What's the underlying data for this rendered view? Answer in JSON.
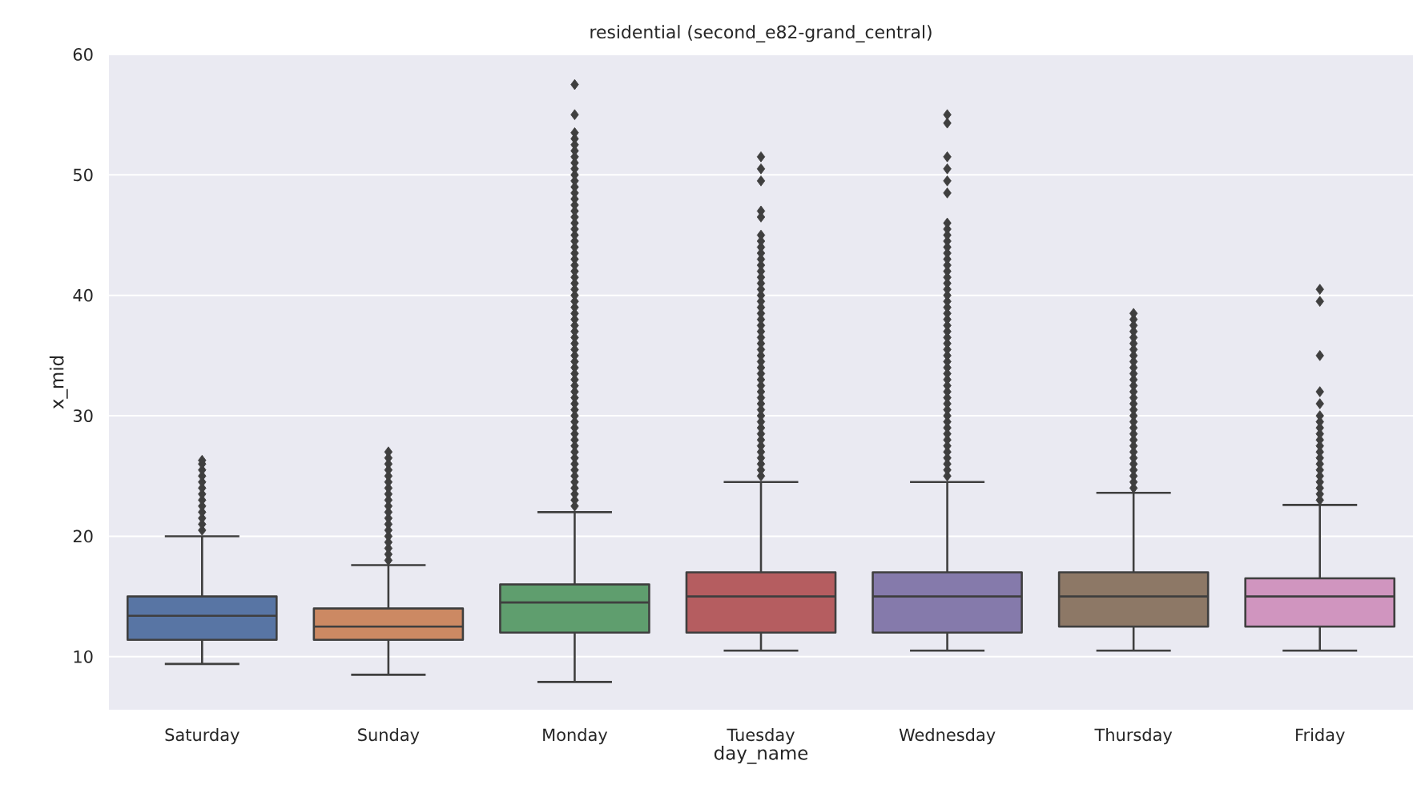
{
  "chart_data": {
    "type": "box",
    "title": "residential (second_e82-grand_central)",
    "xlabel": "day_name",
    "ylabel": "x_mid",
    "categories": [
      "Saturday",
      "Sunday",
      "Monday",
      "Tuesday",
      "Wednesday",
      "Thursday",
      "Friday"
    ],
    "colors": [
      "#5875a4",
      "#cc8963",
      "#5f9e6e",
      "#b55d60",
      "#857aab",
      "#8d7866",
      "#d095bf"
    ],
    "boxes": [
      {
        "low": 9.4,
        "q1": 11.4,
        "median": 13.4,
        "q3": 15.0,
        "high": 20.0,
        "outliers": [
          20.5,
          21,
          21.5,
          22,
          22.5,
          23,
          23.5,
          24,
          24.5,
          25,
          25.5,
          26,
          26.3
        ]
      },
      {
        "low": 8.5,
        "q1": 11.4,
        "median": 12.5,
        "q3": 14.0,
        "high": 17.6,
        "outliers": [
          18,
          18.5,
          19,
          19.5,
          20,
          20.5,
          21,
          21.5,
          22,
          22.5,
          23,
          23.5,
          24,
          24.5,
          25,
          25.5,
          26,
          26.5,
          27
        ]
      },
      {
        "low": 7.9,
        "q1": 12.0,
        "median": 14.5,
        "q3": 16.0,
        "high": 22.0,
        "outliers": [
          22.5,
          23,
          23.5,
          24,
          24.5,
          25,
          25.5,
          26,
          26.5,
          27,
          27.5,
          28,
          28.5,
          29,
          29.5,
          30,
          30.5,
          31,
          31.5,
          32,
          32.5,
          33,
          33.5,
          34,
          34.5,
          35,
          35.5,
          36,
          36.5,
          37,
          37.5,
          38,
          38.5,
          39,
          39.5,
          40,
          40.5,
          41,
          41.5,
          42,
          42.5,
          43,
          43.5,
          44,
          44.5,
          45,
          45.5,
          46,
          46.5,
          47,
          47.5,
          48,
          48.5,
          49,
          49.5,
          50,
          50.5,
          51,
          51.5,
          52,
          52.5,
          53,
          53.5,
          55,
          57.5
        ]
      },
      {
        "low": 10.5,
        "q1": 12.0,
        "median": 15.0,
        "q3": 17.0,
        "high": 24.5,
        "outliers": [
          25,
          25.5,
          26,
          26.5,
          27,
          27.5,
          28,
          28.5,
          29,
          29.5,
          30,
          30.5,
          31,
          31.5,
          32,
          32.5,
          33,
          33.5,
          34,
          34.5,
          35,
          35.5,
          36,
          36.5,
          37,
          37.5,
          38,
          38.5,
          39,
          39.5,
          40,
          40.5,
          41,
          41.5,
          42,
          42.5,
          43,
          43.5,
          44,
          44.5,
          45,
          46.5,
          47,
          49.5,
          50.5,
          51.5
        ]
      },
      {
        "low": 10.5,
        "q1": 12.0,
        "median": 15.0,
        "q3": 17.0,
        "high": 24.5,
        "outliers": [
          25,
          25.5,
          26,
          26.5,
          27,
          27.5,
          28,
          28.5,
          29,
          29.5,
          30,
          30.5,
          31,
          31.5,
          32,
          32.5,
          33,
          33.5,
          34,
          34.5,
          35,
          35.5,
          36,
          36.5,
          37,
          37.5,
          38,
          38.5,
          39,
          39.5,
          40,
          40.5,
          41,
          41.5,
          42,
          42.5,
          43,
          43.5,
          44,
          44.5,
          45,
          45.5,
          46,
          48.5,
          49.5,
          50.5,
          51.5,
          54.3,
          55
        ]
      },
      {
        "low": 10.5,
        "q1": 12.5,
        "median": 15.0,
        "q3": 17.0,
        "high": 23.6,
        "outliers": [
          24,
          24.5,
          25,
          25.5,
          26,
          26.5,
          27,
          27.5,
          28,
          28.5,
          29,
          29.5,
          30,
          30.5,
          31,
          31.5,
          32,
          32.5,
          33,
          33.5,
          34,
          34.5,
          35,
          35.5,
          36,
          36.5,
          37,
          37.5,
          38,
          38.5
        ]
      },
      {
        "low": 10.5,
        "q1": 12.5,
        "median": 15.0,
        "q3": 16.5,
        "high": 22.6,
        "outliers": [
          23,
          23.5,
          24,
          24.5,
          25,
          25.5,
          26,
          26.5,
          27,
          27.5,
          28,
          28.5,
          29,
          29.5,
          30,
          31,
          32,
          35,
          39.5,
          40.5
        ]
      }
    ],
    "ylim": [
      5.6,
      60
    ],
    "yticks": [
      10,
      20,
      30,
      40,
      50,
      60
    ],
    "grid": "y"
  }
}
